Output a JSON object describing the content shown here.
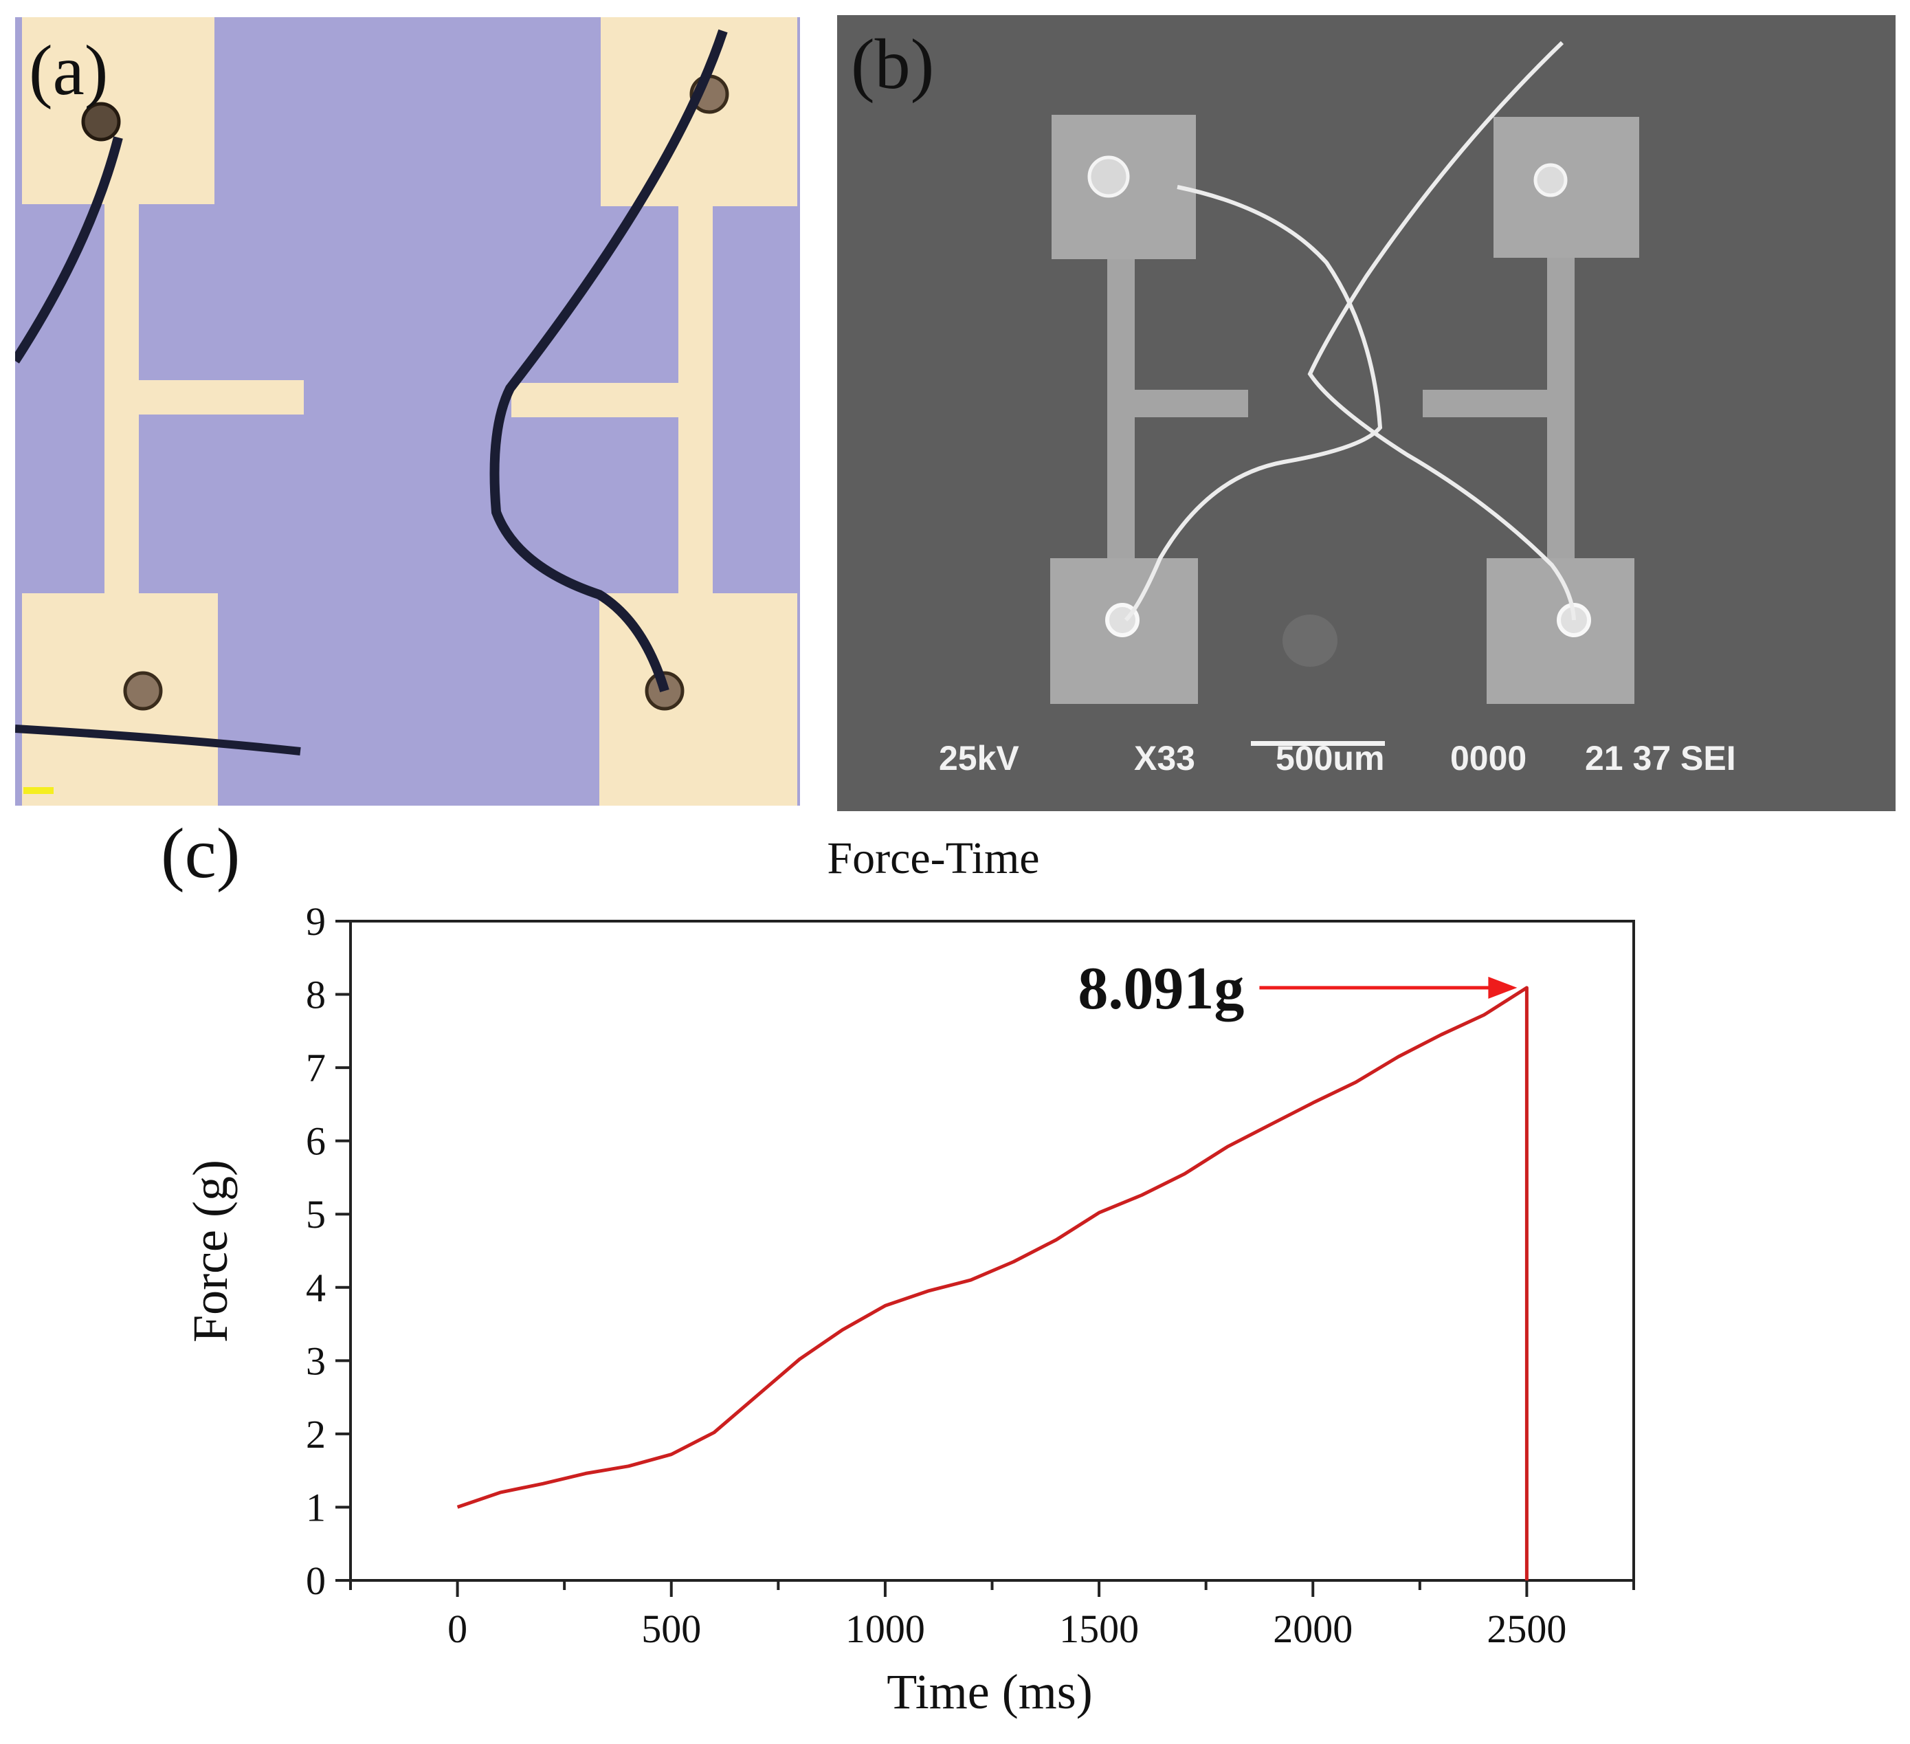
{
  "panels": {
    "a": {
      "label": "(a)"
    },
    "b": {
      "label": "(b)",
      "sem_info": {
        "voltage": "25kV",
        "magnification": "X33",
        "scale_bar": "500um",
        "code": "0000",
        "id": "21 37 SEI"
      }
    },
    "c": {
      "label": "(c)"
    }
  },
  "chart_data": {
    "type": "line",
    "title": "Force-Time",
    "xlabel": "Time (ms)",
    "ylabel": "Force (g)",
    "xlim": [
      -250,
      2750
    ],
    "ylim": [
      0,
      9
    ],
    "xticks": [
      0,
      500,
      1000,
      1500,
      2000,
      2500
    ],
    "yticks": [
      0,
      1,
      2,
      3,
      4,
      5,
      6,
      7,
      8,
      9
    ],
    "grid": false,
    "series": [
      {
        "color": "#cc1f1f",
        "x": [
          0,
          100,
          200,
          300,
          400,
          500,
          600,
          700,
          800,
          900,
          1000,
          1100,
          1200,
          1300,
          1400,
          1500,
          1600,
          1700,
          1800,
          1900,
          2000,
          2100,
          2200,
          2300,
          2400,
          2500,
          2500
        ],
        "y": [
          1.0,
          1.2,
          1.32,
          1.46,
          1.56,
          1.72,
          2.02,
          2.52,
          3.02,
          3.42,
          3.75,
          3.95,
          4.1,
          4.35,
          4.65,
          5.02,
          5.26,
          5.55,
          5.92,
          6.22,
          6.52,
          6.8,
          7.15,
          7.45,
          7.72,
          8.091,
          0
        ]
      }
    ],
    "annotation": {
      "text": "8.091g",
      "x": 2500,
      "y": 8.091,
      "color": "#ee1c1c"
    }
  }
}
